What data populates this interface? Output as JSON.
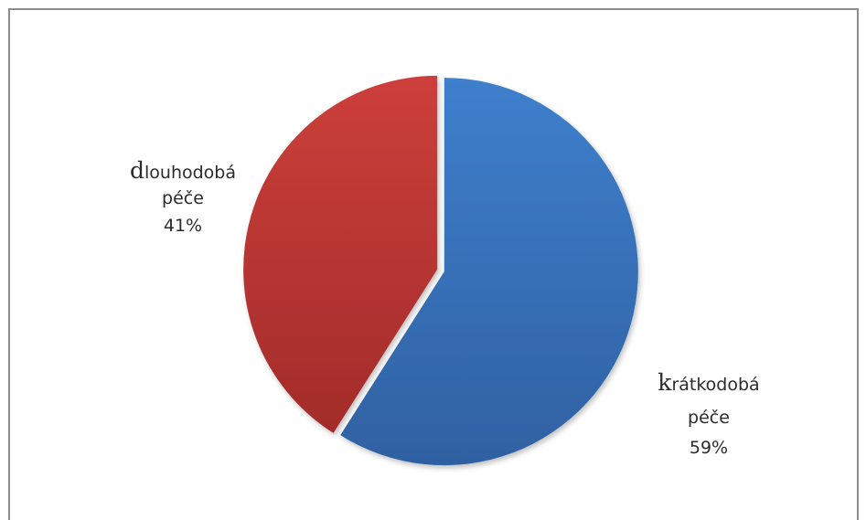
{
  "chart_data": {
    "type": "pie",
    "slices": [
      {
        "label_first": "k",
        "label_rest": "rátkodobá",
        "label_line2": "péče",
        "value": 59,
        "value_label": "59%",
        "color": "#3a73b8"
      },
      {
        "label_first": "d",
        "label_rest": "louhodobá",
        "label_line2": "péče",
        "value": 41,
        "value_label": "41%",
        "color": "#bf3a37"
      }
    ]
  }
}
